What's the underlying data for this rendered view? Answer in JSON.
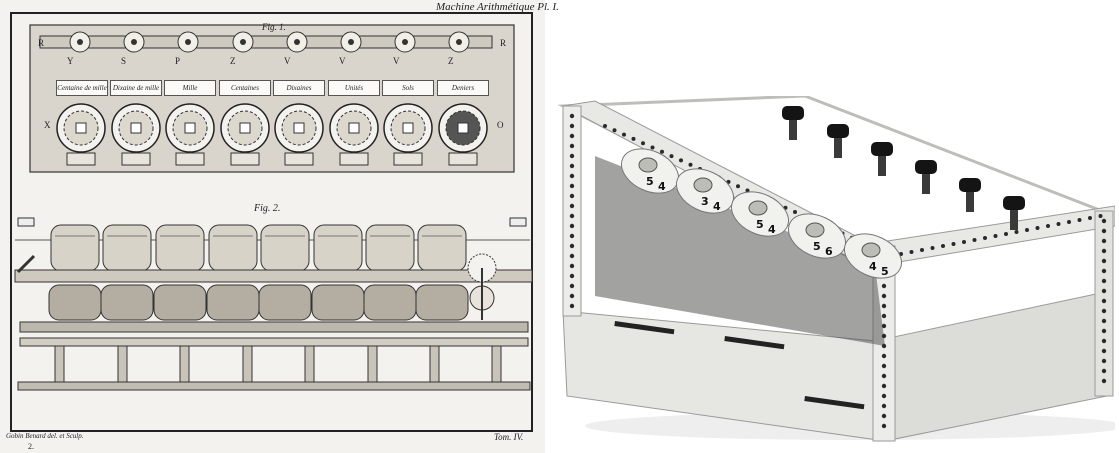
{
  "plate": {
    "title": "Machine Arithmétique Pl. I.",
    "fig1_label": "Fig. 1.",
    "fig2_label": "Fig. 2.",
    "unit_labels": [
      "Centaine de mille",
      "Dixaine de mille",
      "Mille",
      "Centaines",
      "Dixaines",
      "Unités",
      "Sols",
      "Deniers"
    ],
    "corner_letters": {
      "top_left": "R",
      "top_right": "R",
      "mid_left": "X",
      "mid_right": "O"
    },
    "dial_letters": [
      "Y",
      "S",
      "P",
      "Z",
      "V",
      "V",
      "V",
      "Z"
    ],
    "engraver_credit": "Gobin Benard del. et Sculp.",
    "plate_number": "2.",
    "tome": "Tom. IV."
  },
  "model": {
    "drum_digits": [
      "5",
      "4",
      "3",
      "4",
      "5",
      "4",
      "5",
      "6",
      "4"
    ],
    "colors": {
      "frame": "#e6e6e3",
      "holes": "#2a2a2a",
      "knob": "#141414",
      "drum": "#f1f1ee"
    }
  }
}
